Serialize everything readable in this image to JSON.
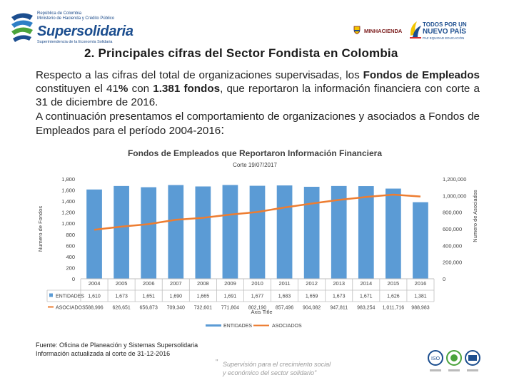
{
  "header": {
    "ministry_line1": "República de Colombia",
    "ministry_line2": "Ministerio de Hacienda y Crédito Público",
    "brand": "Supersolidaria",
    "brand_tagline": "Superintendencia de la Economía Solidaria",
    "minhacienda": "MINHACIENDA",
    "todos_line1": "TODOS POR UN",
    "todos_line2": "NUEVO PAÍS",
    "todos_line3": "PAZ  EQUIDAD  EDUCACIÓN"
  },
  "slide": {
    "title": "2. Principales cifras del Sector Fondista en Colombia",
    "para_1a": "Respecto a las cifras del total de organizaciones supervisadas, los ",
    "para_1b": "Fondos de Empleados",
    "para_1c": " constituyen el 41",
    "para_1d": "%",
    "para_1e": " con ",
    "para_1f": "1.381 fondos",
    "para_1g": ", que reportaron la información financiera con corte a 31 de diciembre de 2016.",
    "para_2": "A continuación presentamos el comportamiento de organizaciones y asociados a Fondos de Empleados para el período 2004-2016",
    "para_2_end": ":"
  },
  "chart_data": {
    "type": "bar+line",
    "title": "Fondos de Empleados que Reportaron Información Financiera",
    "subtitle": "Corte 19/07/2017",
    "xlabel": "Axis Title",
    "ylabel_left": "Numero de Fondos",
    "ylabel_right": "Numero de Asociados",
    "ylim_left": [
      0,
      1800
    ],
    "ylim_right": [
      0,
      1200000
    ],
    "yticks_left": [
      "0",
      "200",
      "400",
      "600",
      "800",
      "1,000",
      "1,200",
      "1,400",
      "1,600",
      "1,800"
    ],
    "yticks_right": [
      "0",
      "200,000",
      "400,000",
      "600,000",
      "800,000",
      "1,000,000",
      "1,200,000"
    ],
    "categories": [
      "2004",
      "2005",
      "2006",
      "2007",
      "2008",
      "2009",
      "2010",
      "2011",
      "2012",
      "2013",
      "2014",
      "2015",
      "2016"
    ],
    "series": [
      {
        "name": "ENTIDADES",
        "type": "bar",
        "axis": "left",
        "color": "#5b9bd5",
        "values": [
          1610,
          1673,
          1651,
          1690,
          1665,
          1691,
          1677,
          1683,
          1659,
          1673,
          1671,
          1626,
          1381
        ],
        "labels": [
          "1,610",
          "1,673",
          "1,651",
          "1,690",
          "1,665",
          "1,691",
          "1,677",
          "1,683",
          "1,659",
          "1,673",
          "1,671",
          "1,626",
          "1,381"
        ]
      },
      {
        "name": "ASOCIADOS",
        "type": "line",
        "axis": "right",
        "color": "#ed7d31",
        "values": [
          588996,
          626651,
          656873,
          709340,
          732601,
          771804,
          802190,
          857496,
          904082,
          947811,
          983254,
          1011716,
          988983
        ],
        "labels": [
          "588,996",
          "626,651",
          "656,873",
          "709,340",
          "732,601",
          "771,804",
          "802,190",
          "857,496",
          "904,082",
          "947,811",
          "983,254",
          "1,011,716",
          "988,983"
        ]
      }
    ],
    "legend_position": "bottom"
  },
  "footer": {
    "source_1": "Fuente: Oficina de Planeación y Sistemas Supersolidaria",
    "source_2": "Información actualizada al corte de 31-12-2016",
    "slogan_1": "Supervisión para el crecimiento social",
    "slogan_2": "y económico del sector solidario\"",
    "quote_open": "\""
  }
}
